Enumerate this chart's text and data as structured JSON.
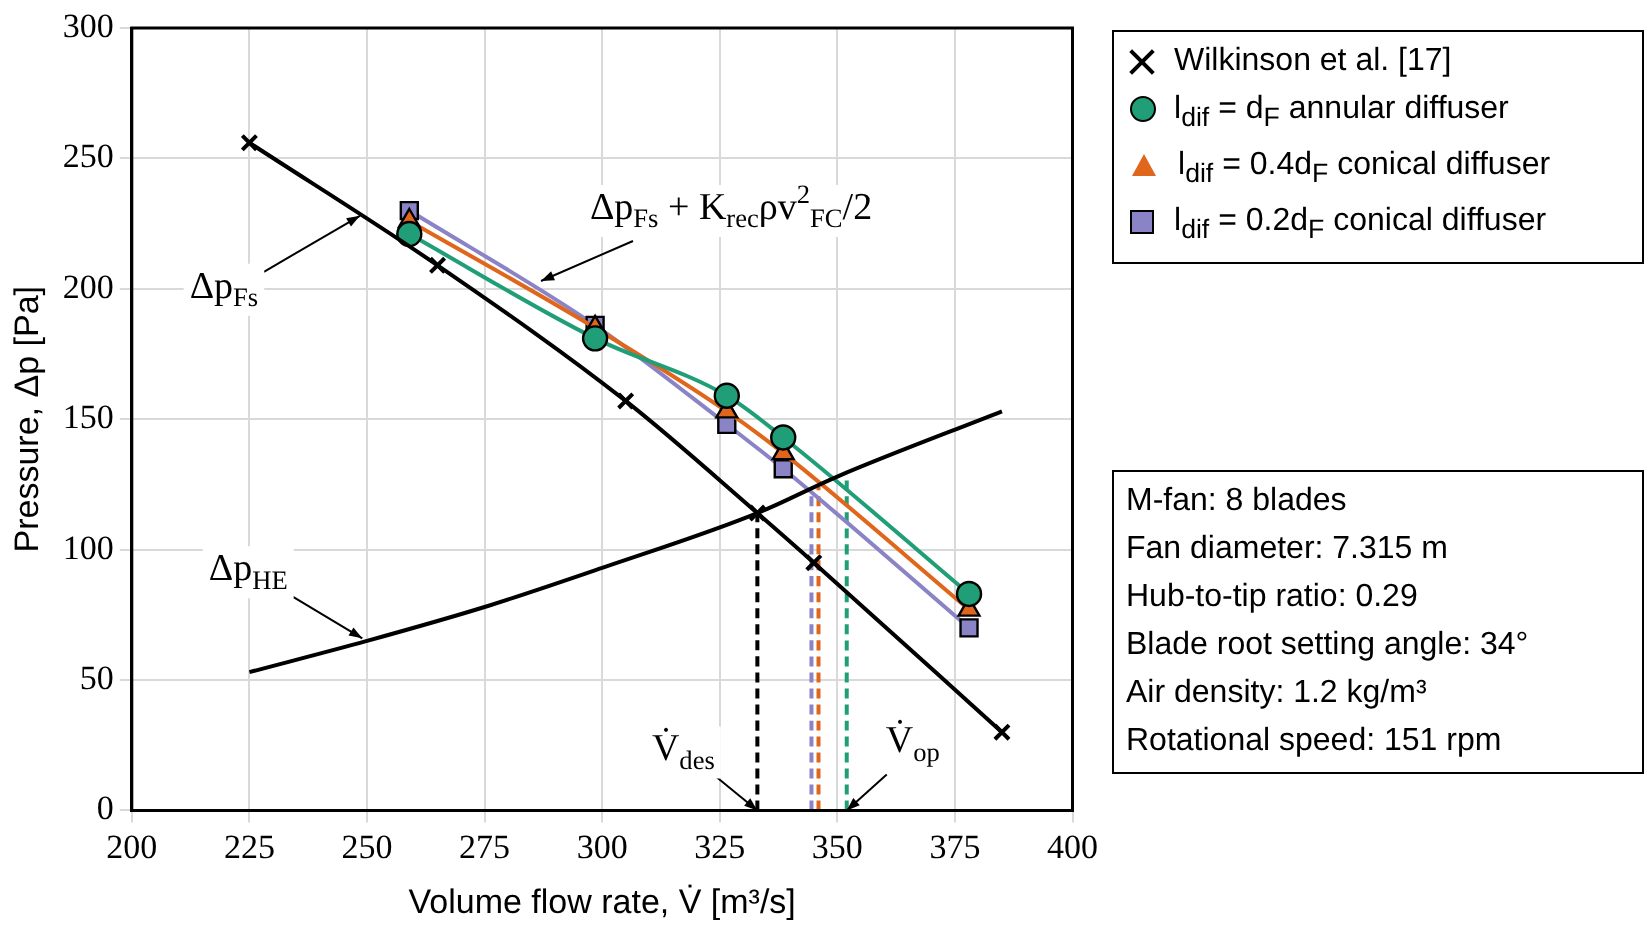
{
  "chart_data": {
    "type": "line",
    "xlabel": "Volume flow rate, V̇ [m³/s]",
    "ylabel": "Pressure, Δp [Pa]",
    "xlim": [
      200,
      400
    ],
    "xticks": [
      200,
      225,
      250,
      275,
      300,
      325,
      350,
      375,
      400
    ],
    "ylim": [
      0,
      300
    ],
    "yticks": [
      0,
      50,
      100,
      150,
      200,
      250,
      300
    ],
    "grid": true,
    "legend": "top right",
    "series": [
      {
        "name": "Wilkinson et al. [17]",
        "type": "line",
        "color": "#000000",
        "marker": "cross",
        "line_style": "solid",
        "x": [
          225,
          265,
          305,
          333,
          345,
          385
        ],
        "values": [
          256,
          209,
          157,
          114,
          95,
          30
        ]
      },
      {
        "type": "line",
        "color": "#000000",
        "marker": "none",
        "line_style": "solid",
        "x": [
          225,
          250,
          275,
          300,
          333,
          350,
          385
        ],
        "values": [
          53,
          65,
          78,
          93,
          114,
          128,
          153
        ]
      },
      {
        "name": "l$_{dif}$ = d$_{F}$ annular diffuser",
        "type": "line",
        "color": "#1f9e78",
        "marker": "circle",
        "line_style": "solid",
        "x": [
          259,
          298.5,
          326.5,
          338.5,
          378
        ],
        "values": [
          221,
          181,
          159,
          143,
          83
        ]
      },
      {
        "name": "l$_{dif}$ = 0.4d$_{F}$ conical diffuser",
        "type": "line",
        "color": "#e0661c",
        "marker": "triangle",
        "line_style": "solid",
        "x": [
          259,
          298.5,
          326.5,
          338.5,
          378
        ],
        "values": [
          226,
          185,
          153,
          137,
          77
        ]
      },
      {
        "name": "l$_{dif}$ = 0.2d$_{F}$ conical diffuser",
        "type": "line",
        "color": "#8a84c6",
        "marker": "square",
        "line_style": "solid",
        "x": [
          259,
          298.5,
          326.5,
          338.5,
          378
        ],
        "values": [
          230,
          186,
          148,
          131,
          70
        ]
      },
      {
        "type": "line",
        "color": "#000000",
        "marker": "none",
        "line_style": "dashed",
        "x": [
          333,
          333
        ],
        "values": [
          0,
          114
        ]
      },
      {
        "type": "line",
        "color": "#8a84c6",
        "marker": "none",
        "line_style": "dashed",
        "x": [
          344.5,
          344.5
        ],
        "values": [
          0,
          122
        ]
      },
      {
        "type": "line",
        "color": "#e0661c",
        "marker": "none",
        "line_style": "dashed",
        "x": [
          346,
          346
        ],
        "values": [
          0,
          124
        ]
      },
      {
        "type": "line",
        "color": "#1f9e78",
        "marker": "none",
        "line_style": "dashed",
        "x": [
          352,
          352
        ],
        "values": [
          0,
          128
        ]
      }
    ],
    "annotations": [
      {
        "text": "Δp$_{Fs}$",
        "x": 248.5,
        "y": 228
      },
      {
        "text": "Δp$_{Fs}$ + K$_{rec}$ρv$^{2}$$_{FC}$/2",
        "x": 287,
        "y": 203
      },
      {
        "text": "Δp$_{HE}$",
        "x": 249,
        "y": 66
      },
      {
        "text": "V̇$_{des}$",
        "x": 333,
        "y": 0
      },
      {
        "text": "V̇$_{op}$",
        "x": 352,
        "y": 0
      },
      "M-fan: 8 blades",
      "Fan diameter: 7.315 m",
      "Hub-to-tip ratio: 0.29",
      "Blade root setting angle: 34°",
      "Air density: 1.2 kg/m³",
      "Rotational speed: 151 rpm"
    ]
  }
}
